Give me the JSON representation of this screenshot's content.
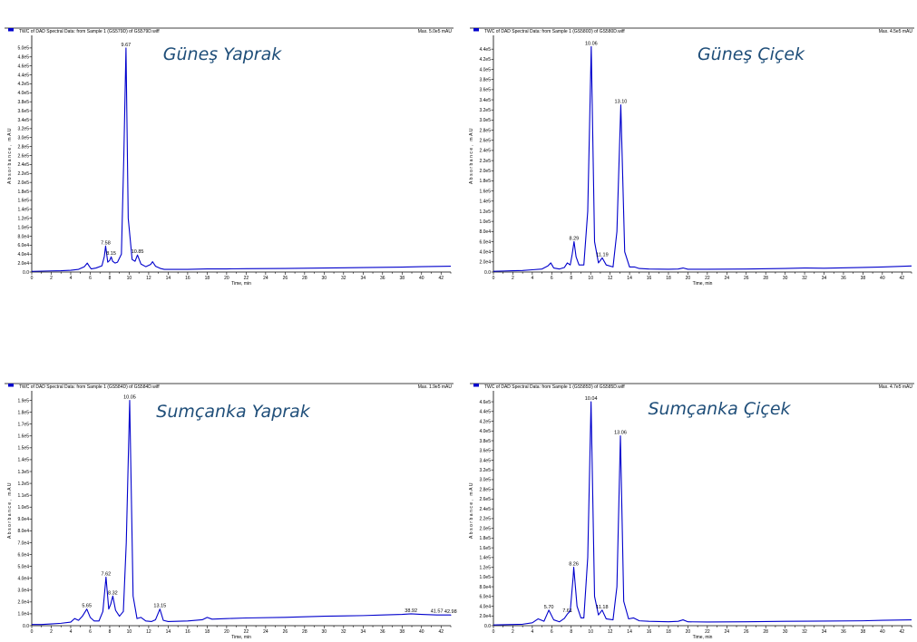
{
  "colors": {
    "trace": "#0000cc",
    "title": "#1f4e79",
    "axis": "#000000"
  },
  "chart_data": [
    {
      "type": "line",
      "title": "Güneş Yaprak",
      "header": "TWC of DAD Spectral Data: from Sample 1 (GS579D) of GS579D.wiff",
      "max_label": "Max. 5.0e5 mAU",
      "xlabel": "Time, min",
      "ylabel": "Absorbance, mAU",
      "xlim": [
        0,
        43
      ],
      "ylim": [
        0,
        520000
      ],
      "x_ticks": [
        "0",
        "2",
        "4",
        "6",
        "8",
        "10",
        "12",
        "14",
        "16",
        "18",
        "20",
        "22",
        "24",
        "26",
        "28",
        "30",
        "32",
        "34",
        "36",
        "38",
        "40",
        "42"
      ],
      "y_ticks": [
        {
          "v": 0,
          "l": "0.0"
        },
        {
          "v": 20000,
          "l": "2.0e4"
        },
        {
          "v": 40000,
          "l": "4.0e4"
        },
        {
          "v": 60000,
          "l": "6.0e4"
        },
        {
          "v": 80000,
          "l": "8.0e4"
        },
        {
          "v": 100000,
          "l": "1.0e5"
        },
        {
          "v": 120000,
          "l": "1.2e5"
        },
        {
          "v": 140000,
          "l": "1.4e5"
        },
        {
          "v": 160000,
          "l": "1.6e5"
        },
        {
          "v": 180000,
          "l": "1.8e5"
        },
        {
          "v": 200000,
          "l": "2.0e5"
        },
        {
          "v": 220000,
          "l": "2.2e5"
        },
        {
          "v": 240000,
          "l": "2.4e5"
        },
        {
          "v": 260000,
          "l": "2.6e5"
        },
        {
          "v": 280000,
          "l": "2.8e5"
        },
        {
          "v": 300000,
          "l": "3.0e5"
        },
        {
          "v": 320000,
          "l": "3.2e5"
        },
        {
          "v": 340000,
          "l": "3.4e5"
        },
        {
          "v": 360000,
          "l": "3.6e5"
        },
        {
          "v": 380000,
          "l": "3.8e5"
        },
        {
          "v": 400000,
          "l": "4.0e5"
        },
        {
          "v": 420000,
          "l": "4.2e5"
        },
        {
          "v": 440000,
          "l": "4.4e5"
        },
        {
          "v": 460000,
          "l": "4.6e5"
        },
        {
          "v": 480000,
          "l": "4.8e5"
        },
        {
          "v": 500000,
          "l": "5.0e5"
        }
      ],
      "series": [
        {
          "x": [
            0,
            1,
            2,
            3,
            4,
            4.8,
            5.4,
            5.7,
            5.9,
            6.1,
            6.6,
            7.2,
            7.45,
            7.58,
            7.8,
            8.0,
            8.15,
            8.3,
            8.55,
            8.8,
            9.2,
            9.45,
            9.67,
            9.9,
            10.3,
            10.6,
            10.85,
            11.2,
            11.7,
            12.2,
            12.4,
            12.7,
            13.2,
            13.6,
            14,
            16,
            18,
            20,
            22,
            26,
            30,
            34,
            38,
            40,
            43
          ],
          "y": [
            1500,
            2000,
            2500,
            3000,
            4000,
            6000,
            12000,
            20000,
            13000,
            7000,
            9000,
            14000,
            35000,
            58000,
            22000,
            26000,
            34000,
            24000,
            20000,
            22000,
            40000,
            260000,
            500000,
            120000,
            28000,
            24000,
            38000,
            18000,
            12000,
            17000,
            23000,
            13000,
            8000,
            6000,
            6000,
            6000,
            7000,
            7000,
            7500,
            8000,
            9000,
            10000,
            11000,
            12000,
            13000
          ]
        }
      ],
      "peaks": [
        {
          "x": 7.58,
          "y": 58000,
          "label": "7.58"
        },
        {
          "x": 8.15,
          "y": 34000,
          "label": "8.15"
        },
        {
          "x": 9.67,
          "y": 500000,
          "label": "9.67"
        },
        {
          "x": 10.85,
          "y": 38000,
          "label": "10.85"
        }
      ]
    },
    {
      "type": "line",
      "title": "Güneş Çiçek",
      "header": "TWC of DAD Spectral Data: from Sample 1 (GS580D) of GS580D.wiff",
      "max_label": "Max. 4.5e5 mAU",
      "xlabel": "Time, min",
      "ylabel": "Absorbance, mAU",
      "xlim": [
        0,
        43
      ],
      "ylim": [
        0,
        460000
      ],
      "x_ticks": [
        "0",
        "2",
        "4",
        "6",
        "8",
        "10",
        "12",
        "14",
        "16",
        "18",
        "20",
        "22",
        "24",
        "26",
        "28",
        "30",
        "32",
        "34",
        "36",
        "38",
        "40",
        "42"
      ],
      "y_ticks": [
        {
          "v": 0,
          "l": "0.0"
        },
        {
          "v": 20000,
          "l": "2.0e4"
        },
        {
          "v": 40000,
          "l": "4.0e4"
        },
        {
          "v": 60000,
          "l": "6.0e4"
        },
        {
          "v": 80000,
          "l": "8.0e4"
        },
        {
          "v": 100000,
          "l": "1.0e5"
        },
        {
          "v": 120000,
          "l": "1.2e5"
        },
        {
          "v": 140000,
          "l": "1.4e5"
        },
        {
          "v": 160000,
          "l": "1.6e5"
        },
        {
          "v": 180000,
          "l": "1.8e5"
        },
        {
          "v": 200000,
          "l": "2.0e5"
        },
        {
          "v": 220000,
          "l": "2.2e5"
        },
        {
          "v": 240000,
          "l": "2.4e5"
        },
        {
          "v": 260000,
          "l": "2.6e5"
        },
        {
          "v": 280000,
          "l": "2.8e5"
        },
        {
          "v": 300000,
          "l": "3.0e5"
        },
        {
          "v": 320000,
          "l": "3.2e5"
        },
        {
          "v": 340000,
          "l": "3.4e5"
        },
        {
          "v": 360000,
          "l": "3.6e5"
        },
        {
          "v": 380000,
          "l": "3.8e5"
        },
        {
          "v": 400000,
          "l": "4.0e5"
        },
        {
          "v": 420000,
          "l": "4.2e5"
        },
        {
          "v": 440000,
          "l": "4.4e5"
        }
      ],
      "series": [
        {
          "x": [
            0,
            1,
            2,
            3,
            4,
            5,
            5.6,
            5.9,
            6.2,
            6.8,
            7.3,
            7.6,
            7.9,
            8.1,
            8.29,
            8.5,
            8.8,
            9.3,
            9.7,
            10.06,
            10.4,
            10.8,
            11.19,
            11.6,
            12.3,
            12.7,
            13.1,
            13.5,
            14,
            14.5,
            15,
            16,
            18,
            19,
            19.5,
            20,
            22,
            26,
            30,
            32,
            34,
            38,
            40,
            43
          ],
          "y": [
            1500,
            2000,
            2500,
            3000,
            4500,
            6000,
            12000,
            18000,
            8000,
            6000,
            9000,
            18000,
            14000,
            35000,
            60000,
            30000,
            14000,
            14000,
            120000,
            445000,
            60000,
            18000,
            28000,
            14000,
            10000,
            80000,
            330000,
            40000,
            10000,
            10000,
            7000,
            6000,
            5500,
            6000,
            8000,
            5500,
            5500,
            6000,
            7000,
            8000,
            7500,
            9000,
            10000,
            12000
          ]
        }
      ],
      "peaks": [
        {
          "x": 8.29,
          "y": 60000,
          "label": "8.29"
        },
        {
          "x": 10.06,
          "y": 445000,
          "label": "10.06"
        },
        {
          "x": 11.19,
          "y": 28000,
          "label": "11.19"
        },
        {
          "x": 13.1,
          "y": 330000,
          "label": "13.10"
        }
      ]
    },
    {
      "type": "line",
      "title": "Sumçanka Yaprak",
      "header": "TWC of DAD Spectral Data: from Sample 1 (GS584D) of GS584D.wiff",
      "max_label": "Max. 1.9e5 mAU",
      "xlabel": "Time, min",
      "ylabel": "Absorbance, mAU",
      "xlim": [
        0,
        43
      ],
      "ylim": [
        0,
        195000
      ],
      "x_ticks": [
        "0",
        "2",
        "4",
        "6",
        "8",
        "10",
        "12",
        "14",
        "16",
        "18",
        "20",
        "22",
        "24",
        "26",
        "28",
        "30",
        "32",
        "34",
        "36",
        "38",
        "40",
        "42"
      ],
      "y_ticks": [
        {
          "v": 0,
          "l": "0.0"
        },
        {
          "v": 10000,
          "l": "1.0e4"
        },
        {
          "v": 20000,
          "l": "2.0e4"
        },
        {
          "v": 30000,
          "l": "3.0e4"
        },
        {
          "v": 40000,
          "l": "4.0e4"
        },
        {
          "v": 50000,
          "l": "5.0e4"
        },
        {
          "v": 60000,
          "l": "6.0e4"
        },
        {
          "v": 70000,
          "l": "7.0e4"
        },
        {
          "v": 80000,
          "l": "8.0e4"
        },
        {
          "v": 90000,
          "l": "9.0e4"
        },
        {
          "v": 100000,
          "l": "1.0e5"
        },
        {
          "v": 110000,
          "l": "1.1e5"
        },
        {
          "v": 120000,
          "l": "1.2e5"
        },
        {
          "v": 130000,
          "l": "1.3e5"
        },
        {
          "v": 140000,
          "l": "1.4e5"
        },
        {
          "v": 150000,
          "l": "1.5e5"
        },
        {
          "v": 160000,
          "l": "1.6e5"
        },
        {
          "v": 170000,
          "l": "1.7e5"
        },
        {
          "v": 180000,
          "l": "1.8e5"
        },
        {
          "v": 190000,
          "l": "1.9e5"
        }
      ],
      "series": [
        {
          "x": [
            0,
            1,
            2,
            3,
            4,
            4.4,
            4.8,
            5.2,
            5.65,
            6.0,
            6.4,
            6.9,
            7.3,
            7.62,
            7.9,
            8.1,
            8.32,
            8.6,
            9.0,
            9.4,
            9.7,
            10.05,
            10.4,
            10.8,
            11.2,
            11.7,
            12.3,
            12.7,
            13.15,
            13.5,
            14,
            16,
            17.5,
            18,
            18.5,
            20,
            22,
            26,
            30,
            34,
            36,
            38,
            38.92,
            40,
            41.57,
            42.98,
            43
          ],
          "y": [
            1000,
            1000,
            1500,
            2000,
            3000,
            6000,
            4500,
            8000,
            14000,
            7000,
            4000,
            4000,
            12000,
            41000,
            14000,
            18000,
            25000,
            13000,
            8000,
            12000,
            70000,
            190000,
            25000,
            6000,
            7000,
            4000,
            3500,
            5000,
            14000,
            4500,
            3500,
            4000,
            5000,
            7000,
            5500,
            6000,
            6500,
            7000,
            8000,
            8500,
            9000,
            9500,
            10000,
            9500,
            9000,
            9000,
            8500
          ]
        }
      ],
      "peaks": [
        {
          "x": 5.65,
          "y": 14000,
          "label": "5.65"
        },
        {
          "x": 7.62,
          "y": 41000,
          "label": "7.62"
        },
        {
          "x": 8.32,
          "y": 25000,
          "label": "8.32"
        },
        {
          "x": 10.05,
          "y": 190000,
          "label": "10.05"
        },
        {
          "x": 13.15,
          "y": 14000,
          "label": "13.15"
        },
        {
          "x": 38.92,
          "y": 10000,
          "label": "38.92"
        },
        {
          "x": 41.57,
          "y": 9500,
          "label": "41.57"
        },
        {
          "x": 42.98,
          "y": 9000,
          "label": "42.98"
        }
      ]
    },
    {
      "type": "line",
      "title": "Sumçanka Çiçek",
      "header": "TWC of DAD Spectral Data: from Sample 1 (GS585D) of GS585D.wiff",
      "max_label": "Max. 4.7e5 mAU",
      "xlabel": "Time, min",
      "ylabel": "Absorbance, mAU",
      "xlim": [
        0,
        43
      ],
      "ylim": [
        0,
        475000
      ],
      "x_ticks": [
        "0",
        "2",
        "4",
        "6",
        "8",
        "10",
        "12",
        "14",
        "16",
        "18",
        "20",
        "22",
        "24",
        "26",
        "28",
        "30",
        "32",
        "34",
        "36",
        "38",
        "40",
        "42"
      ],
      "y_ticks": [
        {
          "v": 0,
          "l": "0.0"
        },
        {
          "v": 20000,
          "l": "2.0e4"
        },
        {
          "v": 40000,
          "l": "4.0e4"
        },
        {
          "v": 60000,
          "l": "6.0e4"
        },
        {
          "v": 80000,
          "l": "8.0e4"
        },
        {
          "v": 100000,
          "l": "1.0e5"
        },
        {
          "v": 120000,
          "l": "1.2e5"
        },
        {
          "v": 140000,
          "l": "1.4e5"
        },
        {
          "v": 160000,
          "l": "1.6e5"
        },
        {
          "v": 180000,
          "l": "1.8e5"
        },
        {
          "v": 200000,
          "l": "2.0e5"
        },
        {
          "v": 220000,
          "l": "2.2e5"
        },
        {
          "v": 240000,
          "l": "2.4e5"
        },
        {
          "v": 260000,
          "l": "2.6e5"
        },
        {
          "v": 280000,
          "l": "2.8e5"
        },
        {
          "v": 300000,
          "l": "3.0e5"
        },
        {
          "v": 320000,
          "l": "3.2e5"
        },
        {
          "v": 340000,
          "l": "3.4e5"
        },
        {
          "v": 360000,
          "l": "3.6e5"
        },
        {
          "v": 380000,
          "l": "3.8e5"
        },
        {
          "v": 400000,
          "l": "4.0e5"
        },
        {
          "v": 420000,
          "l": "4.2e5"
        },
        {
          "v": 440000,
          "l": "4.4e5"
        },
        {
          "v": 460000,
          "l": "4.6e5"
        }
      ],
      "series": [
        {
          "x": [
            0,
            1,
            2,
            3,
            4,
            4.6,
            5.2,
            5.7,
            6.2,
            6.8,
            7.3,
            7.61,
            7.9,
            8.2,
            8.26,
            8.6,
            9.0,
            9.3,
            9.7,
            10.04,
            10.4,
            10.8,
            11.18,
            11.6,
            12.3,
            12.7,
            13.06,
            13.4,
            13.9,
            14.4,
            15,
            16,
            18,
            19,
            19.5,
            20,
            22,
            26,
            30,
            34,
            38,
            40,
            43
          ],
          "y": [
            1500,
            2000,
            2500,
            3000,
            6000,
            14000,
            9000,
            32000,
            12000,
            8000,
            15000,
            24000,
            30000,
            100000,
            120000,
            40000,
            16000,
            16000,
            140000,
            460000,
            60000,
            22000,
            32000,
            14000,
            12000,
            80000,
            390000,
            50000,
            14000,
            16000,
            10000,
            9000,
            8000,
            9000,
            12000,
            8000,
            7500,
            8000,
            9000,
            9500,
            10000,
            11000,
            12000
          ]
        }
      ],
      "peaks": [
        {
          "x": 5.7,
          "y": 32000,
          "label": "5.70"
        },
        {
          "x": 7.61,
          "y": 24000,
          "label": "7.61"
        },
        {
          "x": 8.26,
          "y": 120000,
          "label": "8.26"
        },
        {
          "x": 10.04,
          "y": 460000,
          "label": "10.04"
        },
        {
          "x": 11.18,
          "y": 32000,
          "label": "11.18"
        },
        {
          "x": 13.06,
          "y": 390000,
          "label": "13.06"
        }
      ]
    }
  ]
}
